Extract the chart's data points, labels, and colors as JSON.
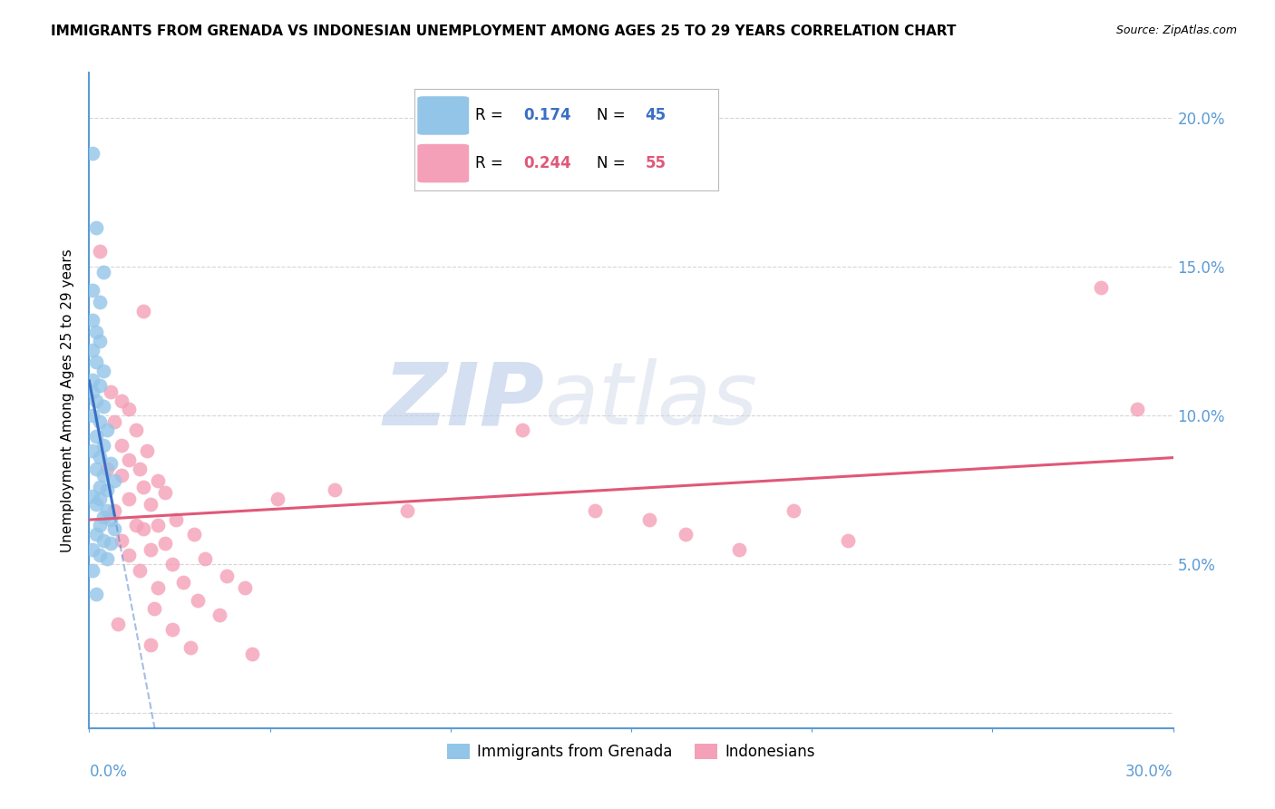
{
  "title": "IMMIGRANTS FROM GRENADA VS INDONESIAN UNEMPLOYMENT AMONG AGES 25 TO 29 YEARS CORRELATION CHART",
  "source": "Source: ZipAtlas.com",
  "ylabel": "Unemployment Among Ages 25 to 29 years",
  "xlim": [
    0.0,
    0.3
  ],
  "ylim": [
    -0.005,
    0.215
  ],
  "yticks": [
    0.0,
    0.05,
    0.1,
    0.15,
    0.2
  ],
  "ytick_labels": [
    "",
    "5.0%",
    "10.0%",
    "15.0%",
    "20.0%"
  ],
  "r1": 0.174,
  "n1": 45,
  "r2": 0.244,
  "n2": 55,
  "color_blue": "#92C5E8",
  "color_pink": "#F4A0B8",
  "color_blue_line": "#3A6FC4",
  "color_pink_line": "#E05878",
  "color_axis": "#5B9BD5",
  "color_grid": "#CCCCCC",
  "watermark_zip": "ZIP",
  "watermark_atlas": "atlas",
  "blue_points": [
    [
      0.001,
      0.188
    ],
    [
      0.002,
      0.163
    ],
    [
      0.004,
      0.148
    ],
    [
      0.001,
      0.142
    ],
    [
      0.003,
      0.138
    ],
    [
      0.001,
      0.132
    ],
    [
      0.002,
      0.128
    ],
    [
      0.003,
      0.125
    ],
    [
      0.001,
      0.122
    ],
    [
      0.002,
      0.118
    ],
    [
      0.004,
      0.115
    ],
    [
      0.001,
      0.112
    ],
    [
      0.003,
      0.11
    ],
    [
      0.001,
      0.108
    ],
    [
      0.002,
      0.105
    ],
    [
      0.004,
      0.103
    ],
    [
      0.001,
      0.1
    ],
    [
      0.003,
      0.098
    ],
    [
      0.005,
      0.095
    ],
    [
      0.002,
      0.093
    ],
    [
      0.004,
      0.09
    ],
    [
      0.001,
      0.088
    ],
    [
      0.003,
      0.086
    ],
    [
      0.006,
      0.084
    ],
    [
      0.002,
      0.082
    ],
    [
      0.004,
      0.08
    ],
    [
      0.007,
      0.078
    ],
    [
      0.003,
      0.076
    ],
    [
      0.005,
      0.075
    ],
    [
      0.001,
      0.073
    ],
    [
      0.003,
      0.072
    ],
    [
      0.002,
      0.07
    ],
    [
      0.005,
      0.068
    ],
    [
      0.004,
      0.066
    ],
    [
      0.006,
      0.065
    ],
    [
      0.003,
      0.063
    ],
    [
      0.007,
      0.062
    ],
    [
      0.002,
      0.06
    ],
    [
      0.004,
      0.058
    ],
    [
      0.006,
      0.057
    ],
    [
      0.001,
      0.055
    ],
    [
      0.003,
      0.053
    ],
    [
      0.005,
      0.052
    ],
    [
      0.001,
      0.048
    ],
    [
      0.002,
      0.04
    ]
  ],
  "pink_points": [
    [
      0.003,
      0.155
    ],
    [
      0.015,
      0.135
    ],
    [
      0.006,
      0.108
    ],
    [
      0.009,
      0.105
    ],
    [
      0.011,
      0.102
    ],
    [
      0.007,
      0.098
    ],
    [
      0.013,
      0.095
    ],
    [
      0.009,
      0.09
    ],
    [
      0.016,
      0.088
    ],
    [
      0.011,
      0.085
    ],
    [
      0.005,
      0.082
    ],
    [
      0.014,
      0.082
    ],
    [
      0.009,
      0.08
    ],
    [
      0.019,
      0.078
    ],
    [
      0.015,
      0.076
    ],
    [
      0.021,
      0.074
    ],
    [
      0.011,
      0.072
    ],
    [
      0.017,
      0.07
    ],
    [
      0.007,
      0.068
    ],
    [
      0.024,
      0.065
    ],
    [
      0.013,
      0.063
    ],
    [
      0.019,
      0.063
    ],
    [
      0.015,
      0.062
    ],
    [
      0.029,
      0.06
    ],
    [
      0.009,
      0.058
    ],
    [
      0.021,
      0.057
    ],
    [
      0.017,
      0.055
    ],
    [
      0.011,
      0.053
    ],
    [
      0.032,
      0.052
    ],
    [
      0.023,
      0.05
    ],
    [
      0.014,
      0.048
    ],
    [
      0.038,
      0.046
    ],
    [
      0.026,
      0.044
    ],
    [
      0.019,
      0.042
    ],
    [
      0.043,
      0.042
    ],
    [
      0.03,
      0.038
    ],
    [
      0.018,
      0.035
    ],
    [
      0.036,
      0.033
    ],
    [
      0.008,
      0.03
    ],
    [
      0.023,
      0.028
    ],
    [
      0.017,
      0.023
    ],
    [
      0.028,
      0.022
    ],
    [
      0.045,
      0.02
    ],
    [
      0.052,
      0.072
    ],
    [
      0.068,
      0.075
    ],
    [
      0.088,
      0.068
    ],
    [
      0.12,
      0.095
    ],
    [
      0.14,
      0.068
    ],
    [
      0.155,
      0.065
    ],
    [
      0.165,
      0.06
    ],
    [
      0.18,
      0.055
    ],
    [
      0.195,
      0.068
    ],
    [
      0.21,
      0.058
    ],
    [
      0.28,
      0.143
    ],
    [
      0.29,
      0.102
    ]
  ]
}
